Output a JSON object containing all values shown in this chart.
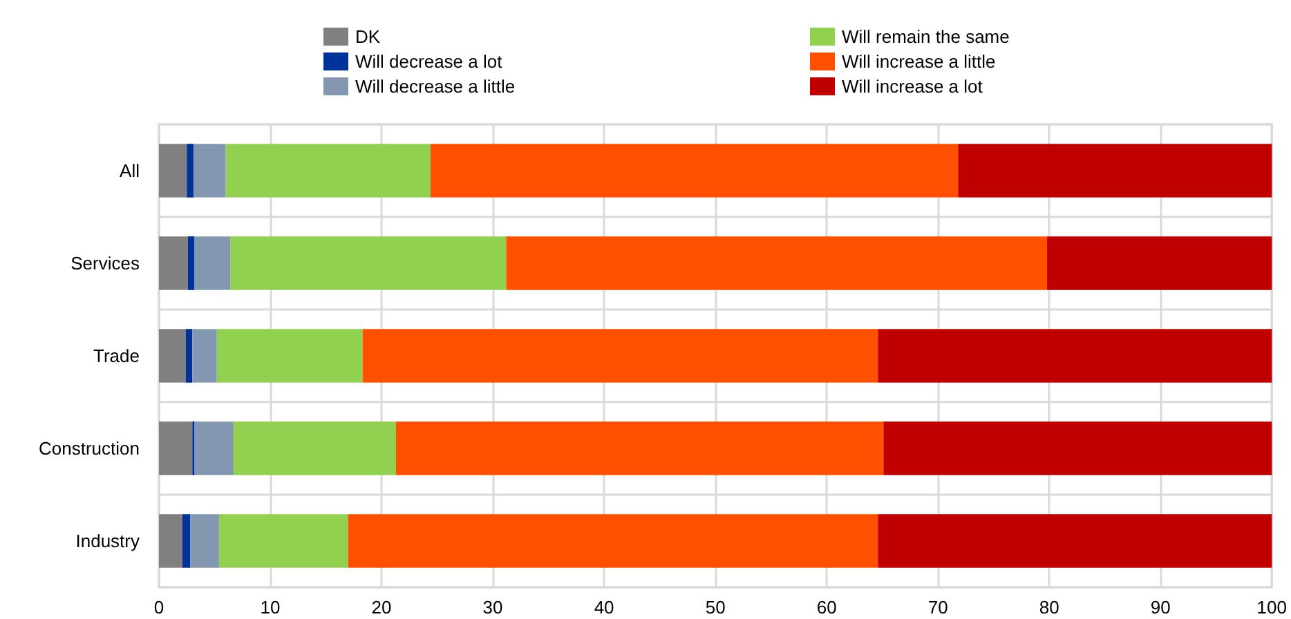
{
  "chart_data": {
    "type": "bar",
    "orientation": "horizontal",
    "stacked": true,
    "categories": [
      "All",
      "Services",
      "Trade",
      "Construction",
      "Industry"
    ],
    "series": [
      {
        "name": "DK",
        "color": "#808080",
        "values": [
          2.5,
          2.6,
          2.4,
          3.0,
          2.1
        ]
      },
      {
        "name": "Will decrease a lot",
        "color": "#003399",
        "values": [
          0.6,
          0.6,
          0.6,
          0.2,
          0.7
        ]
      },
      {
        "name": "Will decrease a little",
        "color": "#8497b0",
        "values": [
          2.9,
          3.2,
          2.2,
          3.5,
          2.6
        ]
      },
      {
        "name": "Will remain the same",
        "color": "#92d050",
        "values": [
          18.4,
          24.8,
          13.1,
          14.6,
          11.6
        ]
      },
      {
        "name": "Will increase a little",
        "color": "#ff5000",
        "values": [
          47.4,
          48.6,
          46.3,
          43.8,
          47.6
        ]
      },
      {
        "name": "Will increase a lot",
        "color": "#c00000",
        "values": [
          28.2,
          20.2,
          35.4,
          34.9,
          35.4
        ]
      }
    ],
    "xlim": [
      0,
      100
    ],
    "xticks": [
      0,
      10,
      20,
      30,
      40,
      50,
      60,
      70,
      80,
      90,
      100
    ],
    "grid": true,
    "legend": "top"
  }
}
